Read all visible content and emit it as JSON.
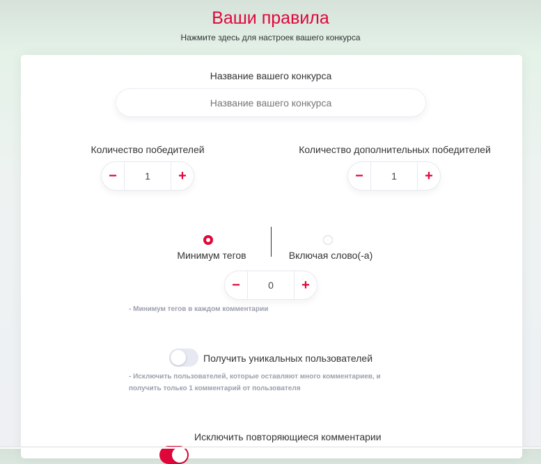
{
  "header": {
    "title": "Ваши правила",
    "subtitle": "Нажмите здесь для настроек вашего конкурса"
  },
  "contest_name": {
    "label": "Название вашего конкурса",
    "value": "",
    "placeholder": "Название вашего конкурса"
  },
  "winners": {
    "label": "Количество победителей",
    "value": "1",
    "minus": "−",
    "plus": "+"
  },
  "extra_winners": {
    "label": "Количество дополнительных победителей",
    "value": "1",
    "minus": "−",
    "plus": "+"
  },
  "mode": {
    "options": [
      {
        "label": "Минимум тегов",
        "selected": true
      },
      {
        "label": "Включая слово(-а)",
        "selected": false
      }
    ]
  },
  "tags": {
    "value": "0",
    "minus": "−",
    "plus": "+",
    "hint": "- Минимум тегов в каждом комментарии"
  },
  "unique_users": {
    "label": "Получить уникальных пользователей",
    "enabled": false,
    "hint": "- Исключить пользователей, которые оставляют много комментариев, и получить только 1 комментарий от пользователя"
  },
  "exclude_duplicates": {
    "label": "Исключить повторяющиеся комментарии",
    "enabled": true
  },
  "colors": {
    "accent": "#e0063a",
    "toggle_off": "#e6e8f2"
  }
}
